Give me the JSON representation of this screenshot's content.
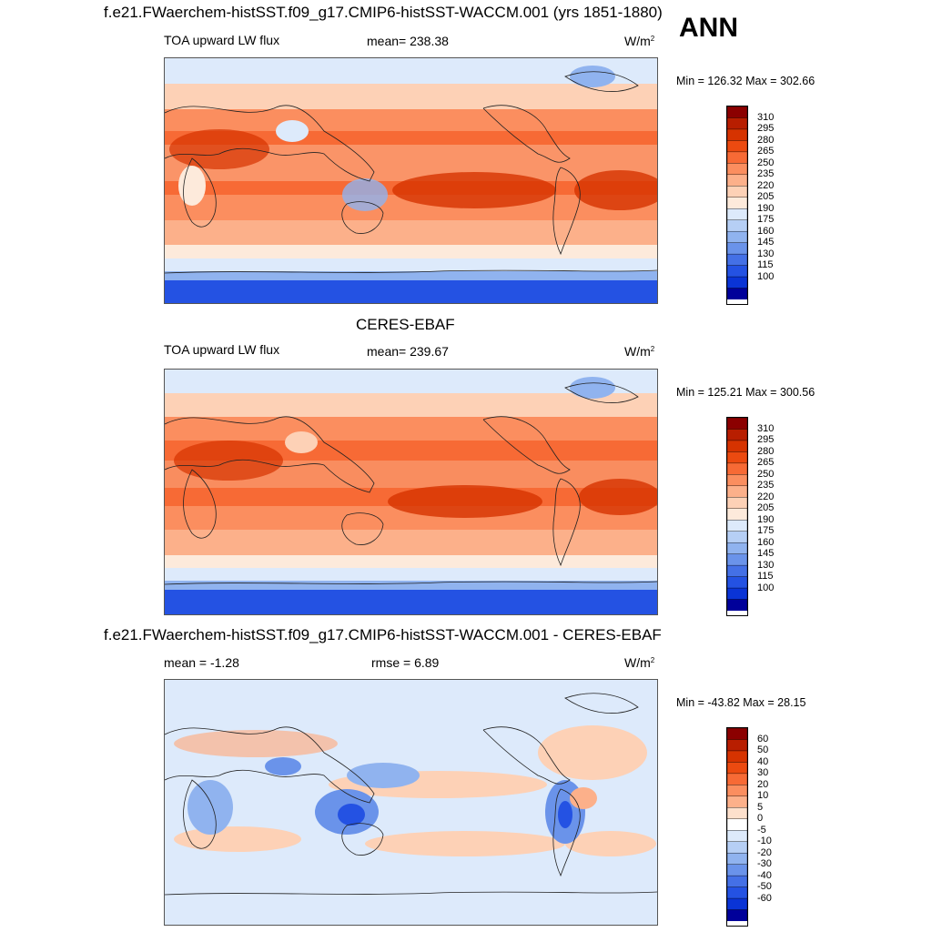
{
  "header": {
    "title": "f.e21.FWaerchem-histSST.f09_g17.CMIP6-histSST-WACCM.001 (yrs 1851-1880)",
    "season": "ANN"
  },
  "panels": [
    {
      "id": "model",
      "title": "",
      "variable": "TOA upward LW flux",
      "stat1": "mean= 238.38",
      "stat2": "",
      "units": "W/m",
      "units_exp": "2",
      "minmax": "Min = 126.32 Max = 302.66"
    },
    {
      "id": "obs",
      "title": "CERES-EBAF",
      "variable": "TOA upward LW flux",
      "stat1": "mean= 239.67",
      "stat2": "",
      "units": "W/m",
      "units_exp": "2",
      "minmax": "Min = 125.21 Max = 300.56"
    },
    {
      "id": "diff",
      "title": "f.e21.FWaerchem-histSST.f09_g17.CMIP6-histSST-WACCM.001 - CERES-EBAF",
      "variable": "",
      "stat1": "mean =  -1.28",
      "stat2": "rmse =   6.89",
      "units": "W/m",
      "units_exp": "2",
      "minmax": "Min = -43.82 Max =  28.15"
    }
  ],
  "colorbars": {
    "flux": {
      "labels": [
        "310",
        "295",
        "280",
        "265",
        "250",
        "235",
        "220",
        "205",
        "190",
        "175",
        "160",
        "145",
        "130",
        "115",
        "100"
      ],
      "colors": [
        "#8b0000",
        "#b81e00",
        "#d63300",
        "#ec4a10",
        "#f76a35",
        "#fb8e5f",
        "#fcb08a",
        "#fdd1b6",
        "#fdeadb",
        "#ddeafb",
        "#b6cff5",
        "#90b3ef",
        "#6a93ea",
        "#4470e6",
        "#2452e3",
        "#0a34d6",
        "#00009a"
      ]
    },
    "diff": {
      "labels": [
        "60",
        "50",
        "40",
        "30",
        "20",
        "10",
        "5",
        "0",
        "-5",
        "-10",
        "-20",
        "-30",
        "-40",
        "-50",
        "-60"
      ],
      "colors": [
        "#8b0000",
        "#b81e00",
        "#d63300",
        "#ec4a10",
        "#f76a35",
        "#fb8e5f",
        "#fcb08a",
        "#fde0cc",
        "#ffffff",
        "#ddeafb",
        "#b6cff5",
        "#90b3ef",
        "#6a93ea",
        "#4470e6",
        "#2452e3",
        "#0a34d6",
        "#00009a"
      ]
    }
  }
}
